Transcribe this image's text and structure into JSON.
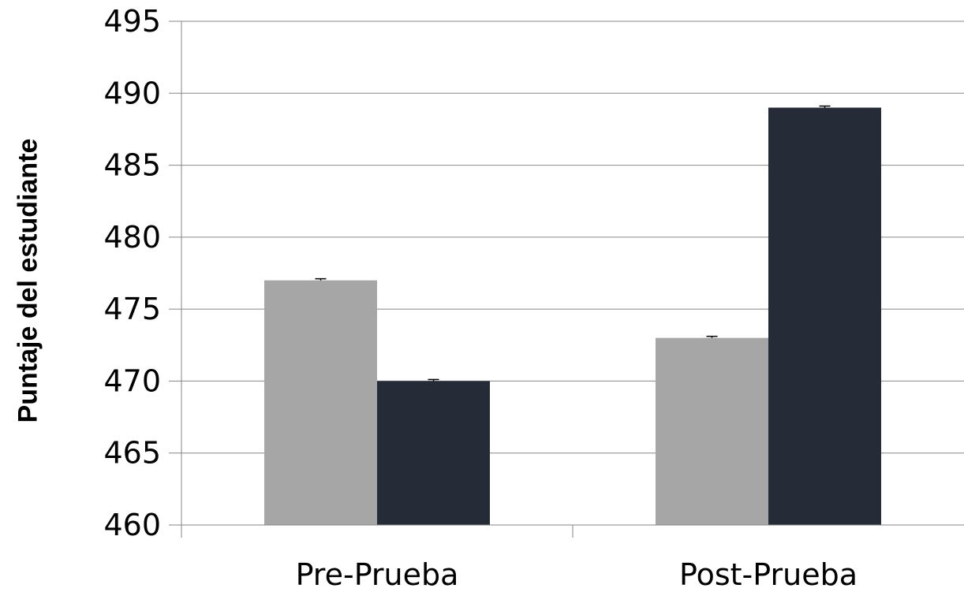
{
  "chart_data": {
    "type": "bar",
    "title": "",
    "xlabel": "",
    "ylabel": "Puntaje del estudiante",
    "categories": [
      "Pre-Prueba",
      "Post-Prueba"
    ],
    "series": [
      {
        "color": "#a6a6a6",
        "values": [
          477,
          473
        ]
      },
      {
        "color": "#252b37",
        "values": [
          470,
          489
        ]
      }
    ],
    "ylim": [
      460,
      495
    ],
    "yticks": [
      "460",
      "465",
      "470",
      "475",
      "480",
      "485",
      "490",
      "495"
    ],
    "grid": true,
    "legend": "none",
    "error_bars": true
  }
}
